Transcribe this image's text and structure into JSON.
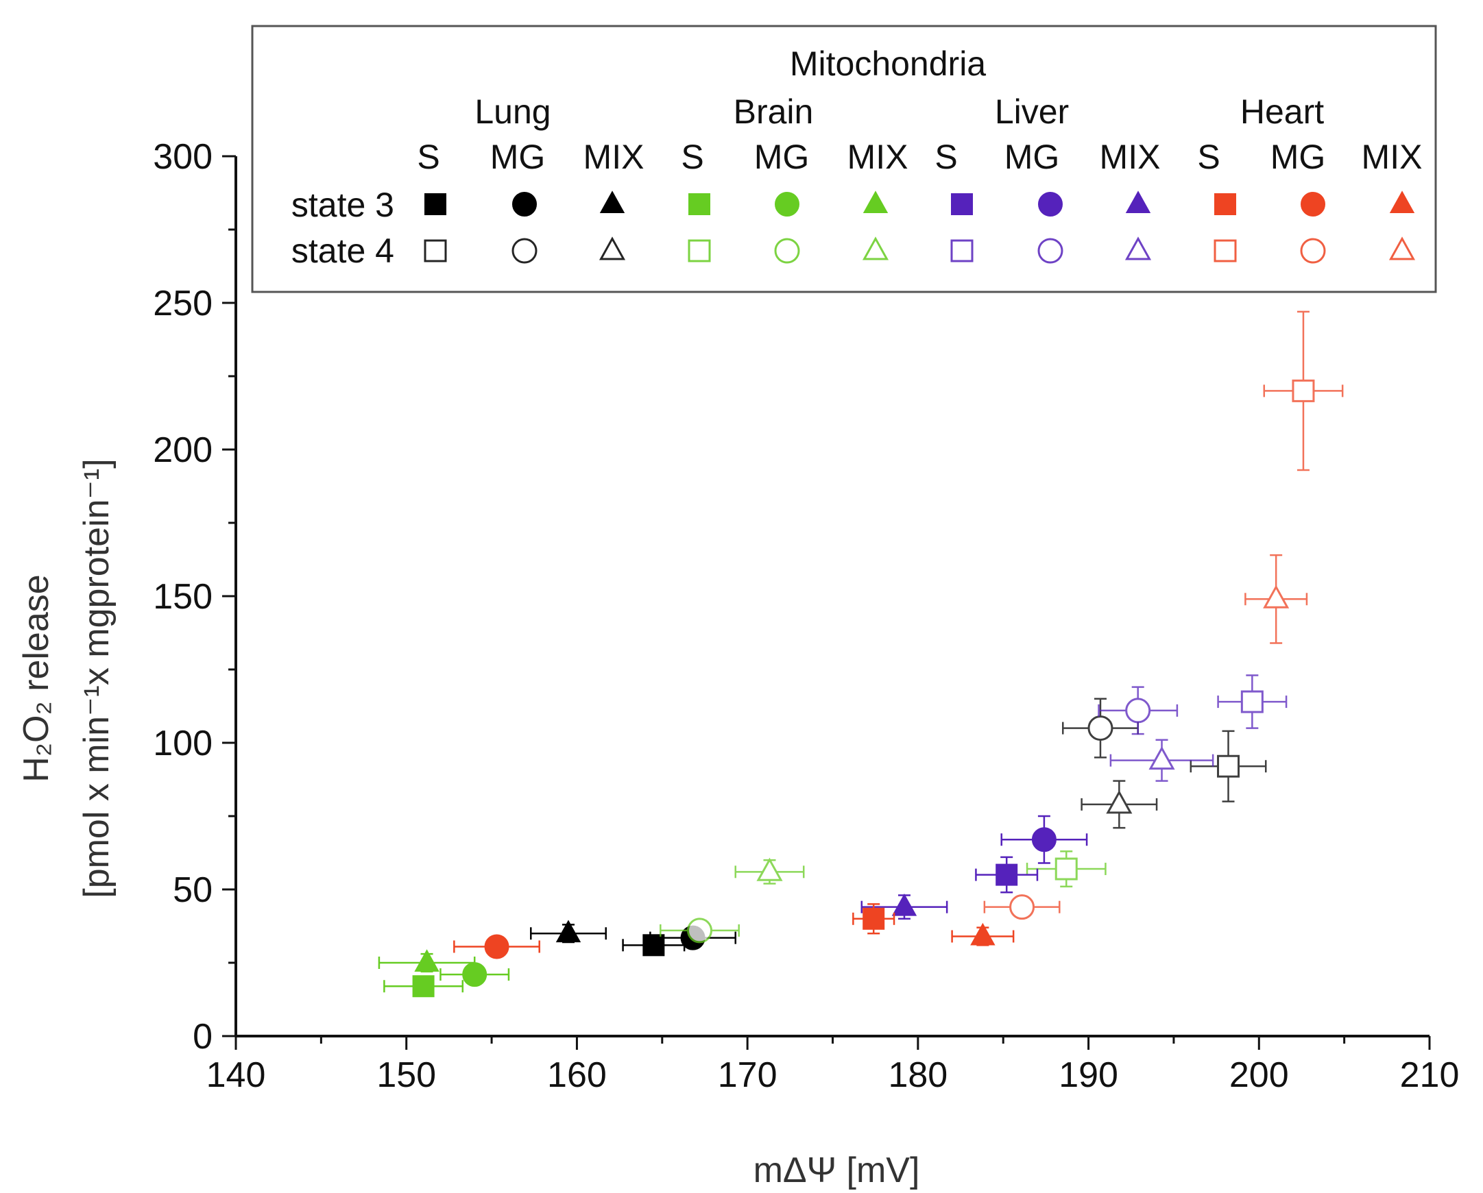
{
  "chart_data": {
    "type": "scatter",
    "xlabel": "mΔΨ [mV]",
    "ylabel_line1": "H₂O₂  release",
    "ylabel_line2": "[pmol x min⁻¹x mgprotein⁻¹]",
    "xlim": [
      140,
      210
    ],
    "ylim": [
      0,
      300
    ],
    "xticks": [
      140,
      150,
      160,
      170,
      180,
      190,
      200,
      210
    ],
    "yticks": [
      0,
      50,
      100,
      150,
      200,
      250,
      300
    ],
    "legend": {
      "title": "Mitochondria",
      "placement": "top-right",
      "tissues": [
        "Lung",
        "Brain",
        "Liver",
        "Heart"
      ],
      "substrates": [
        "S",
        "MG",
        "MIX"
      ],
      "states": [
        "state 3",
        "state 4"
      ]
    },
    "colors": {
      "Lung": "#000000",
      "Brain": "#66cc22",
      "Liver": "#5522bb",
      "Heart": "#ee4422"
    },
    "shape_map": {
      "S": "square",
      "MG": "circle",
      "MIX": "triangle"
    },
    "series": [
      {
        "name": "Lung S state 3",
        "tissue": "Lung",
        "substrate": "S",
        "state": 3,
        "x": 164.5,
        "y": 31,
        "xerr": 1.8,
        "yerr": 2
      },
      {
        "name": "Lung MG state 3",
        "tissue": "Lung",
        "substrate": "MG",
        "state": 3,
        "x": 166.8,
        "y": 33.5,
        "xerr": 2.5,
        "yerr": 2
      },
      {
        "name": "Lung MIX state 3",
        "tissue": "Lung",
        "substrate": "MIX",
        "state": 3,
        "x": 159.5,
        "y": 35,
        "xerr": 2.2,
        "yerr": 3
      },
      {
        "name": "Lung S state 4",
        "tissue": "Lung",
        "substrate": "S",
        "state": 4,
        "x": 198.2,
        "y": 92,
        "xerr": 2.2,
        "yerr": 12
      },
      {
        "name": "Lung MG state 4",
        "tissue": "Lung",
        "substrate": "MG",
        "state": 4,
        "x": 190.7,
        "y": 105,
        "xerr": 2.2,
        "yerr": 10
      },
      {
        "name": "Lung MIX state 4",
        "tissue": "Lung",
        "substrate": "MIX",
        "state": 4,
        "x": 191.8,
        "y": 79,
        "xerr": 2.2,
        "yerr": 8
      },
      {
        "name": "Brain S state 3",
        "tissue": "Brain",
        "substrate": "S",
        "state": 3,
        "x": 151,
        "y": 17,
        "xerr": 2.3,
        "yerr": 3
      },
      {
        "name": "Brain MG state 3",
        "tissue": "Brain",
        "substrate": "MG",
        "state": 3,
        "x": 154,
        "y": 21,
        "xerr": 2.0,
        "yerr": 3
      },
      {
        "name": "Brain MIX state 3",
        "tissue": "Brain",
        "substrate": "MIX",
        "state": 3,
        "x": 151.2,
        "y": 25,
        "xerr": 2.8,
        "yerr": 3
      },
      {
        "name": "Brain S state 4",
        "tissue": "Brain",
        "substrate": "S",
        "state": 4,
        "x": 188.7,
        "y": 57,
        "xerr": 2.3,
        "yerr": 6
      },
      {
        "name": "Brain MG state 4",
        "tissue": "Brain",
        "substrate": "MG",
        "state": 4,
        "x": 167.2,
        "y": 36,
        "xerr": 2.3,
        "yerr": 2
      },
      {
        "name": "Brain MIX state 4",
        "tissue": "Brain",
        "substrate": "MIX",
        "state": 4,
        "x": 171.3,
        "y": 56,
        "xerr": 2.0,
        "yerr": 4
      },
      {
        "name": "Liver S state 3",
        "tissue": "Liver",
        "substrate": "S",
        "state": 3,
        "x": 185.2,
        "y": 55,
        "xerr": 1.8,
        "yerr": 6
      },
      {
        "name": "Liver MG state 3",
        "tissue": "Liver",
        "substrate": "MG",
        "state": 3,
        "x": 187.4,
        "y": 67,
        "xerr": 2.5,
        "yerr": 8
      },
      {
        "name": "Liver MIX state 3",
        "tissue": "Liver",
        "substrate": "MIX",
        "state": 3,
        "x": 179.2,
        "y": 44,
        "xerr": 2.5,
        "yerr": 4
      },
      {
        "name": "Liver S state 4",
        "tissue": "Liver",
        "substrate": "S",
        "state": 4,
        "x": 199.6,
        "y": 114,
        "xerr": 2.0,
        "yerr": 9
      },
      {
        "name": "Liver MG state 4",
        "tissue": "Liver",
        "substrate": "MG",
        "state": 4,
        "x": 192.9,
        "y": 111,
        "xerr": 2.3,
        "yerr": 8
      },
      {
        "name": "Liver MIX state 4",
        "tissue": "Liver",
        "substrate": "MIX",
        "state": 4,
        "x": 194.3,
        "y": 94,
        "xerr": 3.0,
        "yerr": 7
      },
      {
        "name": "Heart S state 3",
        "tissue": "Heart",
        "substrate": "S",
        "state": 3,
        "x": 177.4,
        "y": 40,
        "xerr": 1.2,
        "yerr": 5
      },
      {
        "name": "Heart MG state 3",
        "tissue": "Heart",
        "substrate": "MG",
        "state": 3,
        "x": 155.3,
        "y": 30.5,
        "xerr": 2.5,
        "yerr": 2
      },
      {
        "name": "Heart MIX state 3",
        "tissue": "Heart",
        "substrate": "MIX",
        "state": 3,
        "x": 183.8,
        "y": 34,
        "xerr": 1.8,
        "yerr": 3
      },
      {
        "name": "Heart S state 4",
        "tissue": "Heart",
        "substrate": "S",
        "state": 4,
        "x": 202.6,
        "y": 220,
        "xerr": 2.3,
        "yerr": 27
      },
      {
        "name": "Heart MG state 4",
        "tissue": "Heart",
        "substrate": "MG",
        "state": 4,
        "x": 186.1,
        "y": 44,
        "xerr": 2.2,
        "yerr": 3
      },
      {
        "name": "Heart MIX state 4",
        "tissue": "Heart",
        "substrate": "MIX",
        "state": 4,
        "x": 201,
        "y": 149,
        "xerr": 1.8,
        "yerr": 15
      }
    ]
  }
}
